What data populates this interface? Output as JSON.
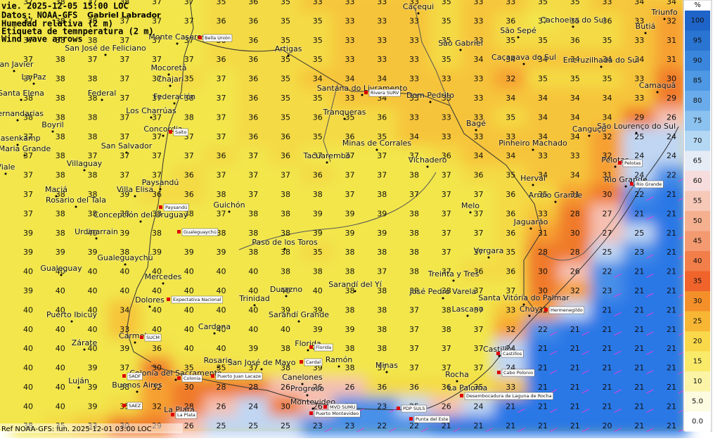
{
  "header": {
    "line1": "vie. 2025-12-05 15:00 LOC",
    "line2": "Datos: NOAA-GFS",
    "author": "Gabriel Labrador",
    "line3": "Humedad relativa (2 m)",
    "line4": "Etiqueta de temnperatura (2 m)",
    "line5": "Wind wave arrows"
  },
  "footer": "Ref NOAA-GFS: lun. 2025-12-01 03:00 LOC",
  "legend": {
    "unit": "%",
    "items": [
      {
        "label": "100",
        "color": "#1f64c8"
      },
      {
        "label": "95",
        "color": "#2a74d2"
      },
      {
        "label": "90",
        "color": "#3a86dc"
      },
      {
        "label": "85",
        "color": "#4e98e4"
      },
      {
        "label": "80",
        "color": "#6aaceb"
      },
      {
        "label": "75",
        "color": "#8cc2f0"
      },
      {
        "label": "70",
        "color": "#b4d8f4"
      },
      {
        "label": "65",
        "color": "#e6ecf6"
      },
      {
        "label": "60",
        "color": "#f6dcdc"
      },
      {
        "label": "55",
        "color": "#f6c8b8"
      },
      {
        "label": "50",
        "color": "#f5b090"
      },
      {
        "label": "45",
        "color": "#f39a70"
      },
      {
        "label": "40",
        "color": "#f27e4a"
      },
      {
        "label": "35",
        "color": "#f0642c"
      },
      {
        "label": "30",
        "color": "#f4902a"
      },
      {
        "label": "25",
        "color": "#f7b634"
      },
      {
        "label": "20",
        "color": "#f9d84a"
      },
      {
        "label": "15",
        "color": "#faea6a"
      },
      {
        "label": "10",
        "color": "#fbf4a6"
      },
      {
        "label": "5.0",
        "color": "#fdfbe0"
      },
      {
        "label": "0.0",
        "color": "#ffffff"
      }
    ]
  },
  "grid": [
    [
      37,
      38,
      37,
      38,
      37,
      37,
      35,
      36,
      35,
      33,
      33,
      33,
      33,
      35,
      33,
      33,
      35,
      35,
      33,
      34,
      34
    ],
    [
      37,
      38,
      38,
      37,
      37,
      37,
      36,
      36,
      35,
      35,
      33,
      33,
      33,
      35,
      33,
      36,
      37,
      35,
      36,
      33,
      32
    ],
    [
      37,
      38,
      38,
      37,
      37,
      37,
      36,
      36,
      35,
      35,
      33,
      33,
      33,
      35,
      33,
      35,
      35,
      36,
      35,
      33,
      31
    ],
    [
      37,
      38,
      37,
      37,
      37,
      37,
      36,
      36,
      35,
      35,
      33,
      33,
      33,
      35,
      34,
      34,
      34,
      34,
      34,
      34,
      31
    ],
    [
      37,
      38,
      38,
      37,
      37,
      35,
      37,
      36,
      35,
      34,
      34,
      34,
      33,
      33,
      33,
      32,
      35,
      35,
      35,
      33,
      30
    ],
    [
      38,
      38,
      38,
      37,
      37,
      38,
      37,
      36,
      35,
      35,
      33,
      34,
      33,
      33,
      33,
      34,
      34,
      34,
      34,
      33,
      29
    ],
    [
      38,
      38,
      38,
      37,
      37,
      38,
      37,
      36,
      35,
      36,
      35,
      36,
      33,
      33,
      33,
      35,
      34,
      34,
      34,
      29,
      26
    ],
    [
      37,
      38,
      38,
      37,
      37,
      37,
      37,
      36,
      36,
      35,
      36,
      35,
      34,
      33,
      33,
      33,
      34,
      34,
      32,
      25,
      24
    ],
    [
      37,
      38,
      37,
      37,
      37,
      37,
      36,
      37,
      36,
      37,
      37,
      37,
      37,
      36,
      34,
      34,
      33,
      33,
      32,
      24,
      24
    ],
    [
      37,
      38,
      38,
      37,
      37,
      36,
      37,
      37,
      37,
      36,
      37,
      37,
      38,
      37,
      36,
      35,
      34,
      34,
      31,
      24,
      22
    ],
    [
      37,
      38,
      38,
      39,
      36,
      36,
      38,
      37,
      38,
      38,
      37,
      38,
      37,
      37,
      37,
      36,
      35,
      31,
      30,
      22,
      21
    ],
    [
      37,
      38,
      38,
      38,
      38,
      38,
      37,
      38,
      38,
      39,
      39,
      39,
      38,
      37,
      37,
      36,
      33,
      28,
      27,
      21,
      21
    ],
    [
      39,
      38,
      40,
      39,
      38,
      38,
      38,
      38,
      38,
      39,
      39,
      39,
      38,
      37,
      37,
      36,
      31,
      30,
      27,
      25,
      21
    ],
    [
      39,
      39,
      39,
      38,
      39,
      39,
      39,
      38,
      38,
      35,
      38,
      38,
      38,
      37,
      37,
      35,
      28,
      28,
      25,
      23,
      21
    ],
    [
      40,
      40,
      40,
      40,
      40,
      40,
      40,
      40,
      38,
      38,
      38,
      37,
      38,
      37,
      36,
      36,
      30,
      26,
      22,
      21,
      21
    ],
    [
      39,
      40,
      40,
      40,
      40,
      40,
      40,
      40,
      40,
      40,
      38,
      38,
      38,
      38,
      37,
      37,
      30,
      32,
      23,
      21,
      21
    ],
    [
      40,
      40,
      40,
      34,
      40,
      40,
      40,
      40,
      39,
      39,
      38,
      38,
      37,
      38,
      37,
      33,
      32,
      24,
      21,
      21,
      21
    ],
    [
      40,
      40,
      40,
      33,
      40,
      40,
      40,
      40,
      40,
      39,
      39,
      38,
      37,
      38,
      37,
      32,
      22,
      21,
      21,
      21,
      21
    ],
    [
      40,
      40,
      40,
      39,
      36,
      40,
      40,
      39,
      38,
      40,
      38,
      38,
      37,
      37,
      37,
      24,
      21,
      21,
      21,
      21,
      21
    ],
    [
      40,
      40,
      39,
      37,
      30,
      35,
      35,
      37,
      38,
      39,
      38,
      37,
      37,
      37,
      37,
      24,
      21,
      21,
      21,
      21,
      21
    ],
    [
      40,
      40,
      39,
      38,
      32,
      30,
      28,
      28,
      26,
      26,
      26,
      36,
      36,
      36,
      35,
      33,
      21,
      21,
      21,
      21,
      21
    ],
    [
      40,
      40,
      39,
      35,
      32,
      28,
      26,
      24,
      30,
      26,
      23,
      23,
      25,
      26,
      24,
      21,
      21,
      21,
      21,
      21,
      21
    ],
    [
      38,
      35,
      33,
      30,
      29,
      26,
      25,
      25,
      25,
      23,
      23,
      22,
      22,
      21,
      21,
      21,
      21,
      21,
      20,
      21,
      21
    ]
  ],
  "places": [
    "San Javier",
    "La Paz",
    "Santa Elena",
    "Hernandarias",
    "Boyril",
    "Hasenkamp",
    "Maria Grande",
    "Viale",
    "San José de Feliciano",
    "Mocoretá",
    "Chajarí",
    "Federal",
    "Federación",
    "Los Charrúas",
    "Concordia",
    "San Salvador",
    "Villaguay",
    "Maciá",
    "Rosario del Tala",
    "Villa Elisa",
    "Paysandú",
    "Concepción del Uruguay",
    "Urdinarrain",
    "Gualeguaychú",
    "Gualeguay",
    "Mercedes",
    "Dolores",
    "Puerto Ibicuy",
    "Zárate",
    "Carmelo",
    "Luján",
    "Buenos Aires",
    "Colonia del Sacramento",
    "Rosario",
    "San José de Mayo",
    "Ramón",
    "Canelones",
    "Progreso",
    "Montevideo",
    "Florida",
    "Minas",
    "Rocha",
    "La Paloma",
    "Castillos",
    "Chuy",
    "Lascano",
    "Santa Vitória do Palmar",
    "José Pedro Varela",
    "Treinta y Tres",
    "Vergara",
    "Sarandí del Yí",
    "Durazno",
    "Trinidad",
    "Sarandí Grande",
    "Cardona",
    "Paso de los Toros",
    "Guichón",
    "Monte Caseros",
    "Artigas",
    "Santana do Livramento",
    "Tranqueras",
    "Dom Pedrito",
    "Minas de Corrales",
    "Tacuarembó",
    "Vichadero",
    "Melo",
    "Jaguarão",
    "Arroio Grande",
    "Herval",
    "Pinheiro Machado",
    "Bagé",
    "Canguçu",
    "São Lourenço do Sul",
    "Pelotas",
    "Rio Grande",
    "Camaquã",
    "Encruzilhada do Sul",
    "Caçapava do Sul",
    "São Gabriel",
    "São Sepé",
    "Cachoeira do Sul",
    "Butiá",
    "Triunfo",
    "Caçequi",
    "La Plata"
  ],
  "stations": [
    "Bella Unión",
    "Rivera SURV",
    "Salto",
    "Paysandú",
    "Gualeguaychú",
    "Expectativa Nacional",
    "SUCM",
    "SADF",
    "SAEZ",
    "La Plata",
    "Colonia",
    "Puerto Juan Lacaze",
    "Cardal",
    "Florida",
    "MVD SUMU",
    "Puerto Montevideo",
    "PDP SULS",
    "Punta del Este",
    "Desembocadura de Laguna de Rocha",
    "Cabo Polonio",
    "Castillos",
    "Hermenegildo",
    "Rio Grande",
    "Pelotas"
  ]
}
